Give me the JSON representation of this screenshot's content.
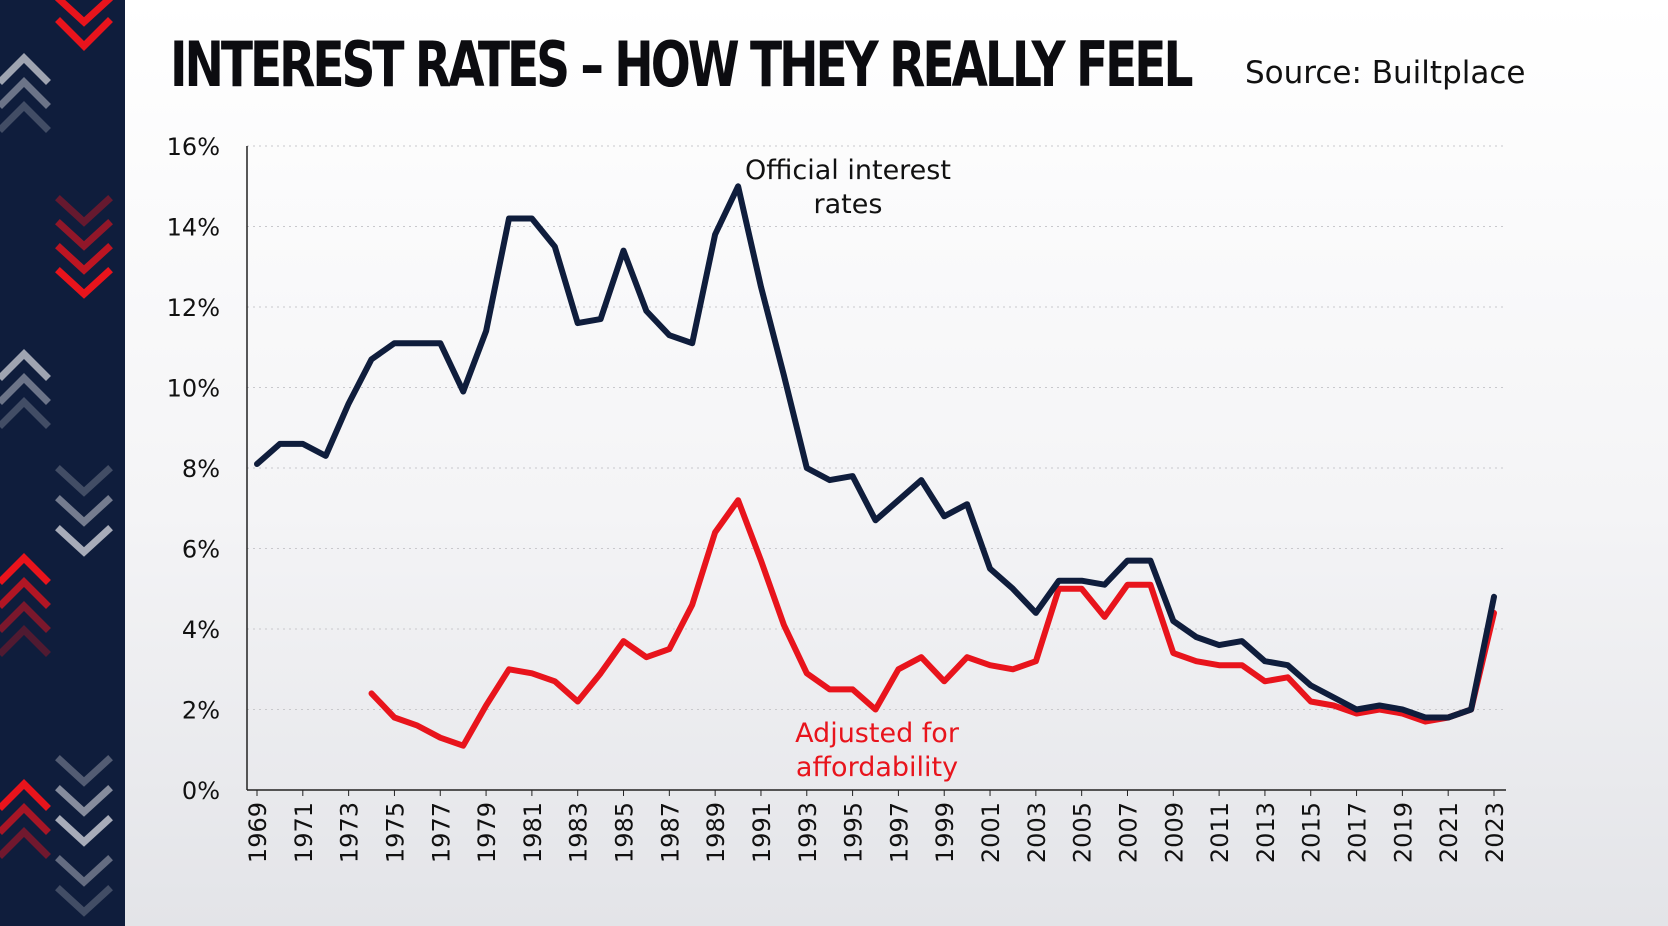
{
  "header": {
    "title": "INTEREST RATES – HOW THEY REALLY FEEL",
    "source": "Source: Builtplace"
  },
  "colors": {
    "official": "#0f1d3c",
    "adjusted": "#e8141c",
    "sidebar": "#0f1d3c"
  },
  "chart_data": {
    "type": "line",
    "title": "INTEREST RATES – HOW THEY REALLY FEEL",
    "xlabel": "",
    "ylabel": "",
    "ylim": [
      0,
      16
    ],
    "y_ticks": [
      "0%",
      "2%",
      "4%",
      "6%",
      "8%",
      "10%",
      "12%",
      "14%",
      "16%"
    ],
    "x": [
      1969,
      1970,
      1971,
      1972,
      1973,
      1974,
      1975,
      1976,
      1977,
      1978,
      1979,
      1980,
      1981,
      1982,
      1983,
      1984,
      1985,
      1986,
      1987,
      1988,
      1989,
      1990,
      1991,
      1992,
      1993,
      1994,
      1995,
      1996,
      1997,
      1998,
      1999,
      2000,
      2001,
      2002,
      2003,
      2004,
      2005,
      2006,
      2007,
      2008,
      2009,
      2010,
      2011,
      2012,
      2013,
      2014,
      2015,
      2016,
      2017,
      2018,
      2019,
      2020,
      2021,
      2022,
      2023
    ],
    "x_tick_labels": [
      "1969",
      "1971",
      "1973",
      "1975",
      "1977",
      "1979",
      "1981",
      "1983",
      "1985",
      "1987",
      "1989",
      "1991",
      "1993",
      "1995",
      "1997",
      "1999",
      "2001",
      "2003",
      "2005",
      "2007",
      "2009",
      "2011",
      "2013",
      "2015",
      "2017",
      "2019",
      "2021",
      "2023"
    ],
    "grid": true,
    "series": [
      {
        "name": "Official interest rates",
        "values": [
          8.1,
          8.6,
          8.6,
          8.3,
          9.6,
          10.7,
          11.1,
          11.1,
          11.1,
          9.9,
          11.4,
          14.2,
          14.2,
          13.5,
          11.6,
          11.7,
          13.4,
          11.9,
          11.3,
          11.1,
          13.8,
          15.0,
          12.5,
          10.3,
          8.0,
          7.7,
          7.8,
          6.7,
          7.2,
          7.7,
          6.8,
          7.1,
          5.5,
          5.0,
          4.4,
          5.2,
          5.2,
          5.1,
          5.7,
          5.7,
          4.2,
          3.8,
          3.6,
          3.7,
          3.2,
          3.1,
          2.6,
          2.3,
          2.0,
          2.1,
          2.0,
          1.8,
          1.8,
          2.0,
          4.8
        ]
      },
      {
        "name": "Adjusted for affordability",
        "values": [
          null,
          null,
          null,
          null,
          null,
          2.4,
          1.8,
          1.6,
          1.3,
          1.1,
          2.1,
          3.0,
          2.9,
          2.7,
          2.2,
          2.9,
          3.7,
          3.3,
          3.5,
          4.6,
          6.4,
          7.2,
          5.7,
          4.1,
          2.9,
          2.5,
          2.5,
          2.0,
          3.0,
          3.3,
          2.7,
          3.3,
          3.1,
          3.0,
          3.2,
          5.0,
          5.0,
          4.3,
          5.1,
          5.1,
          3.4,
          3.2,
          3.1,
          3.1,
          2.7,
          2.8,
          2.2,
          2.1,
          1.9,
          2.0,
          1.9,
          1.7,
          1.8,
          2.0,
          4.4
        ]
      }
    ]
  }
}
